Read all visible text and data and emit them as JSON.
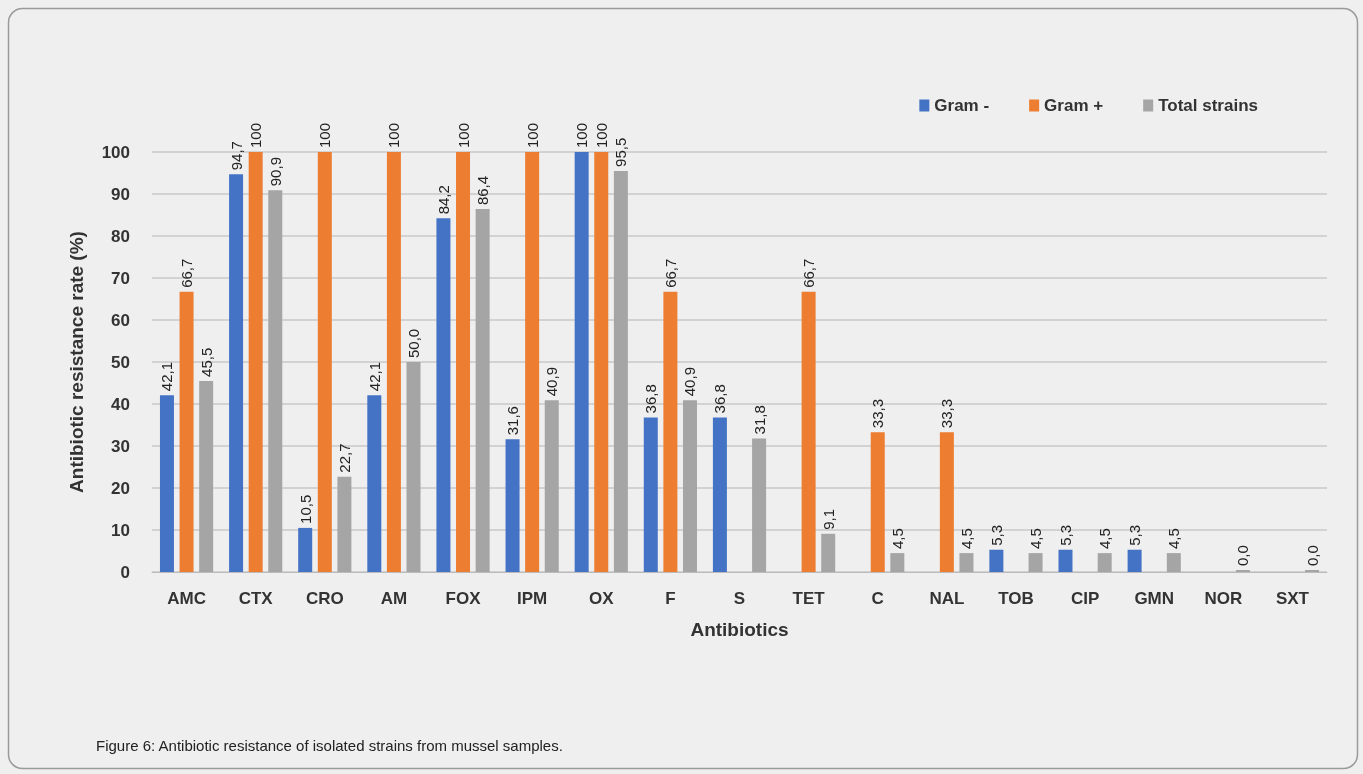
{
  "chart_data": {
    "type": "bar",
    "xlabel": "Antibiotics",
    "ylabel": "Antibiotic resistance rate (%)",
    "categories": [
      "AMC",
      "CTX",
      "CRO",
      "AM",
      "FOX",
      "IPM",
      "OX",
      "F",
      "S",
      "TET",
      "C",
      "NAL",
      "TOB",
      "CIP",
      "GMN",
      "NOR",
      "SXT"
    ],
    "series": [
      {
        "name": "Gram -",
        "color": "#4472c4",
        "values": [
          42.1,
          94.7,
          10.5,
          42.1,
          84.2,
          31.6,
          100,
          36.8,
          36.8,
          null,
          null,
          null,
          5.3,
          5.3,
          5.3,
          null,
          null
        ],
        "value_labels": [
          "42,1",
          "94,7",
          "10,5",
          "42,1",
          "84,2",
          "31,6",
          "100",
          "36,8",
          "36,8",
          null,
          null,
          null,
          "5,3",
          "5,3",
          "5,3",
          null,
          null
        ]
      },
      {
        "name": "Gram +",
        "color": "#ed7d31",
        "values": [
          66.7,
          100,
          100,
          100,
          100,
          100,
          100,
          66.7,
          null,
          66.7,
          33.3,
          33.3,
          null,
          null,
          null,
          null,
          null
        ],
        "value_labels": [
          "66,7",
          "100",
          "100",
          "100",
          "100",
          "100",
          "100",
          "66,7",
          null,
          "66,7",
          "33,3",
          "33,3",
          null,
          null,
          null,
          null,
          null
        ]
      },
      {
        "name": "Total strains",
        "color": "#a5a5a5",
        "values": [
          45.5,
          90.9,
          22.7,
          50.0,
          86.4,
          40.9,
          95.5,
          40.9,
          31.8,
          9.1,
          4.5,
          4.5,
          4.5,
          4.5,
          4.5,
          0,
          0
        ],
        "value_labels": [
          "45,5",
          "90,9",
          "22,7",
          "50,0",
          "86,4",
          "40,9",
          "95,5",
          "40,9",
          "31,8",
          "9,1",
          "4,5",
          "4,5",
          "4,5",
          "4,5",
          "4,5",
          "0,0",
          "0,0"
        ]
      }
    ],
    "ylim": [
      0,
      100
    ],
    "yticks": [
      0,
      10,
      20,
      30,
      40,
      50,
      60,
      70,
      80,
      90,
      100
    ],
    "grid": "y",
    "legend": "top right",
    "annotations": [
      "Figure 6: Antibiotic resistance of isolated strains from mussel samples."
    ]
  }
}
